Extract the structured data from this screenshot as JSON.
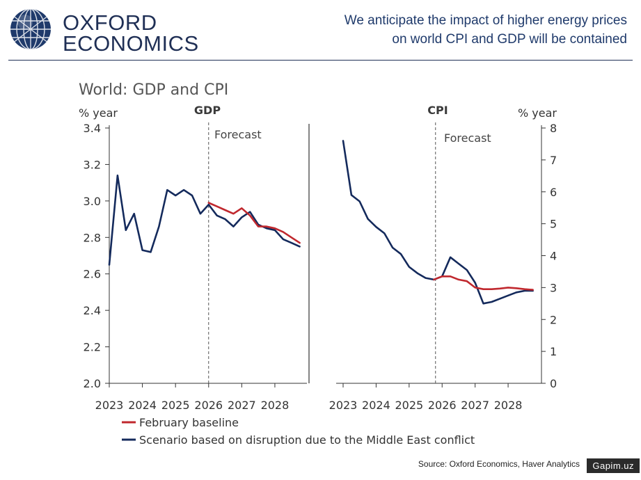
{
  "header": {
    "logo_line1": "OXFORD",
    "logo_line2": "ECONOMICS",
    "headline_line1": "We anticipate the impact of higher energy prices",
    "headline_line2": "on world CPI and GDP will be contained"
  },
  "colors": {
    "baseline": "#c0282e",
    "scenario": "#142a5c",
    "brand": "#1f2f55",
    "axis": "#333333"
  },
  "footer": {
    "source": "Source: Oxford Economics, Haver Analytics",
    "watermark": "Gapim.uz"
  },
  "chart_data": {
    "type": "line",
    "title": "World: GDP and CPI",
    "legend": [
      {
        "name": "February baseline",
        "color_key": "baseline"
      },
      {
        "name": "Scenario based on disruption due to the Middle East conflict",
        "color_key": "scenario"
      }
    ],
    "panels": [
      {
        "name": "GDP",
        "unit": "% year",
        "ylim": [
          2.0,
          3.4
        ],
        "yticks": [
          "2.0",
          "2.2",
          "2.4",
          "2.6",
          "2.8",
          "3.0",
          "3.2",
          "3.4"
        ],
        "xlim": [
          2023.0,
          2028.8
        ],
        "xticks": [
          "2023",
          "2024",
          "2025",
          "2026",
          "2027",
          "2028"
        ],
        "forecast_label": "Forecast",
        "forecast_x": 2026.0,
        "series": [
          {
            "name": "Scenario based on disruption due to the Middle East conflict",
            "color_key": "scenario",
            "x": [
              2023.0,
              2023.25,
              2023.5,
              2023.75,
              2024.0,
              2024.25,
              2024.5,
              2024.75,
              2025.0,
              2025.25,
              2025.5,
              2025.75,
              2026.0,
              2026.25,
              2026.5,
              2026.75,
              2027.0,
              2027.25,
              2027.5,
              2027.75,
              2028.0,
              2028.25,
              2028.5,
              2028.75
            ],
            "y": [
              2.65,
              3.14,
              2.84,
              2.93,
              2.73,
              2.72,
              2.86,
              3.06,
              3.03,
              3.06,
              3.03,
              2.93,
              2.98,
              2.92,
              2.9,
              2.86,
              2.91,
              2.94,
              2.87,
              2.85,
              2.84,
              2.79,
              2.77,
              2.75
            ]
          },
          {
            "name": "February baseline",
            "color_key": "baseline",
            "x": [
              2026.0,
              2026.25,
              2026.5,
              2026.75,
              2027.0,
              2027.25,
              2027.5,
              2027.75,
              2028.0,
              2028.25,
              2028.5,
              2028.75
            ],
            "y": [
              2.99,
              2.97,
              2.95,
              2.93,
              2.96,
              2.92,
              2.86,
              2.86,
              2.85,
              2.83,
              2.8,
              2.77
            ]
          }
        ]
      },
      {
        "name": "CPI",
        "unit": "% year",
        "ylim": [
          0,
          8
        ],
        "yticks": [
          "0",
          "1",
          "2",
          "3",
          "4",
          "5",
          "6",
          "7",
          "8"
        ],
        "xlim": [
          2023.0,
          2028.8
        ],
        "xticks": [
          "2023",
          "2024",
          "2025",
          "2026",
          "2027",
          "2028"
        ],
        "forecast_label": "Forecast",
        "forecast_x": 2025.8,
        "series": [
          {
            "name": "Scenario based on disruption due to the Middle East conflict",
            "color_key": "scenario",
            "x": [
              2023.0,
              2023.25,
              2023.5,
              2023.75,
              2024.0,
              2024.25,
              2024.5,
              2024.75,
              2025.0,
              2025.25,
              2025.5,
              2025.75,
              2026.0,
              2026.25,
              2026.5,
              2026.75,
              2027.0,
              2027.25,
              2027.5,
              2027.75,
              2028.0,
              2028.25,
              2028.5,
              2028.75
            ],
            "y": [
              7.6,
              5.9,
              5.7,
              5.15,
              4.9,
              4.7,
              4.25,
              4.05,
              3.65,
              3.45,
              3.3,
              3.25,
              3.35,
              3.95,
              3.75,
              3.55,
              3.15,
              2.5,
              2.55,
              2.65,
              2.75,
              2.85,
              2.9,
              2.9
            ]
          },
          {
            "name": "February baseline",
            "color_key": "baseline",
            "x": [
              2025.75,
              2026.0,
              2026.25,
              2026.5,
              2026.75,
              2027.0,
              2027.25,
              2027.5,
              2027.75,
              2028.0,
              2028.25,
              2028.5,
              2028.75
            ],
            "y": [
              3.25,
              3.35,
              3.35,
              3.25,
              3.2,
              3.0,
              2.95,
              2.95,
              2.97,
              3.0,
              2.98,
              2.95,
              2.93
            ]
          }
        ]
      }
    ]
  }
}
